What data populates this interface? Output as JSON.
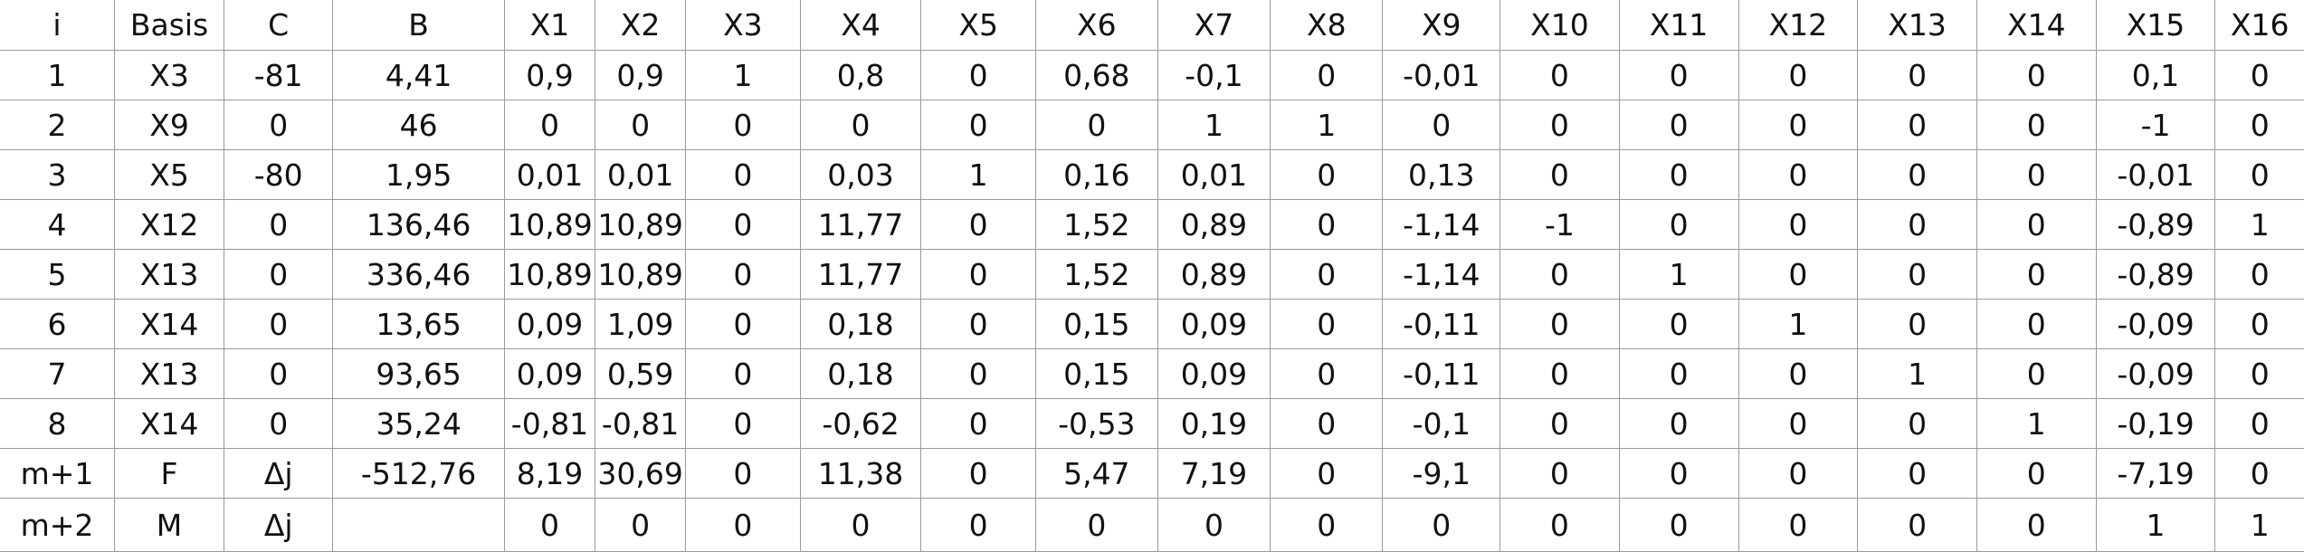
{
  "table": {
    "headers": [
      "i",
      "Basis",
      "C",
      "B",
      "X1",
      "X2",
      "X3",
      "X4",
      "X5",
      "X6",
      "X7",
      "X8",
      "X9",
      "X10",
      "X11",
      "X12",
      "X13",
      "X14",
      "X15",
      "X16"
    ],
    "rows": [
      [
        "1",
        "X3",
        "-81",
        "4,41",
        "0,9",
        "0,9",
        "1",
        "0,8",
        "0",
        "0,68",
        "-0,1",
        "0",
        "-0,01",
        "0",
        "0",
        "0",
        "0",
        "0",
        "0,1",
        "0"
      ],
      [
        "2",
        "X9",
        "0",
        "46",
        "0",
        "0",
        "0",
        "0",
        "0",
        "0",
        "1",
        "1",
        "0",
        "0",
        "0",
        "0",
        "0",
        "0",
        "-1",
        "0"
      ],
      [
        "3",
        "X5",
        "-80",
        "1,95",
        "0,01",
        "0,01",
        "0",
        "0,03",
        "1",
        "0,16",
        "0,01",
        "0",
        "0,13",
        "0",
        "0",
        "0",
        "0",
        "0",
        "-0,01",
        "0"
      ],
      [
        "4",
        "X12",
        "0",
        "136,46",
        "10,89",
        "10,89",
        "0",
        "11,77",
        "0",
        "1,52",
        "0,89",
        "0",
        "-1,14",
        "-1",
        "0",
        "0",
        "0",
        "0",
        "-0,89",
        "1"
      ],
      [
        "5",
        "X13",
        "0",
        "336,46",
        "10,89",
        "10,89",
        "0",
        "11,77",
        "0",
        "1,52",
        "0,89",
        "0",
        "-1,14",
        "0",
        "1",
        "0",
        "0",
        "0",
        "-0,89",
        "0"
      ],
      [
        "6",
        "X14",
        "0",
        "13,65",
        "0,09",
        "1,09",
        "0",
        "0,18",
        "0",
        "0,15",
        "0,09",
        "0",
        "-0,11",
        "0",
        "0",
        "1",
        "0",
        "0",
        "-0,09",
        "0"
      ],
      [
        "7",
        "X13",
        "0",
        "93,65",
        "0,09",
        "0,59",
        "0",
        "0,18",
        "0",
        "0,15",
        "0,09",
        "0",
        "-0,11",
        "0",
        "0",
        "0",
        "1",
        "0",
        "-0,09",
        "0"
      ],
      [
        "8",
        "X14",
        "0",
        "35,24",
        "-0,81",
        "-0,81",
        "0",
        "-0,62",
        "0",
        "-0,53",
        "0,19",
        "0",
        "-0,1",
        "0",
        "0",
        "0",
        "0",
        "1",
        "-0,19",
        "0"
      ],
      [
        "m+1",
        "F",
        "Δj",
        "-512,76",
        "8,19",
        "30,69",
        "0",
        "11,38",
        "0",
        "5,47",
        "7,19",
        "0",
        "-9,1",
        "0",
        "0",
        "0",
        "0",
        "0",
        "-7,19",
        "0"
      ],
      [
        "m+2",
        "M",
        "Δj",
        "",
        "0",
        "0",
        "0",
        "0",
        "0",
        "0",
        "0",
        "0",
        "0",
        "0",
        "0",
        "0",
        "0",
        "0",
        "1",
        "1"
      ]
    ]
  }
}
